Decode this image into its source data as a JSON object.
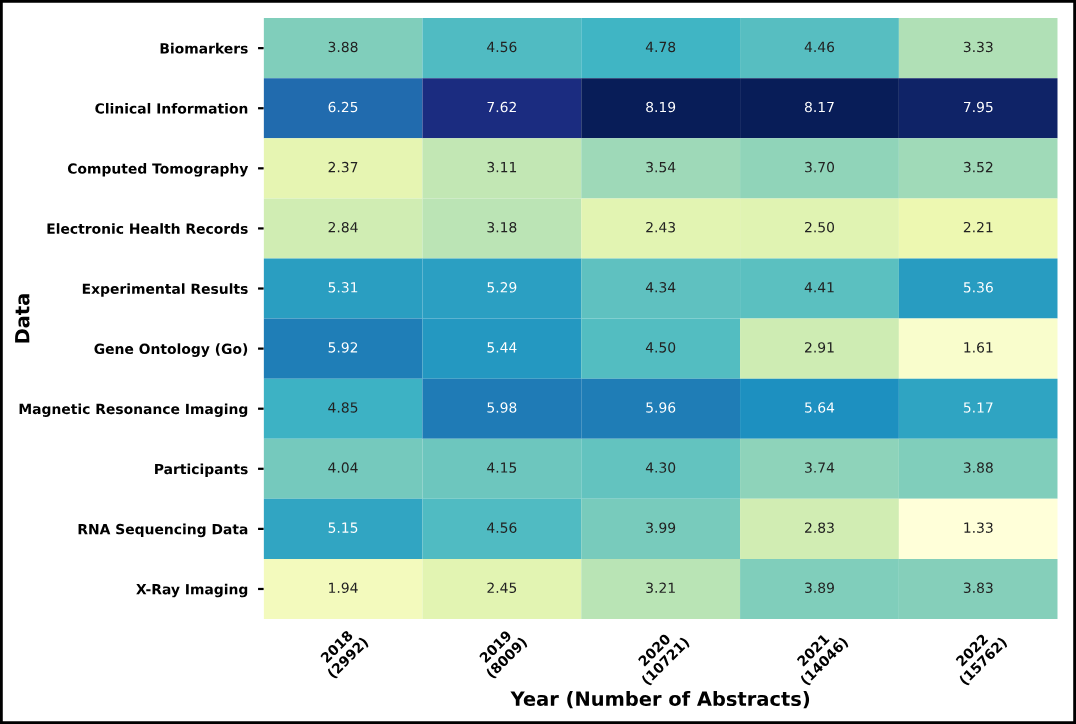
{
  "chart_data": {
    "type": "heatmap",
    "xlabel": "Year (Number of Abstracts)",
    "ylabel": "Data",
    "categories": [
      "2018\n(2992)",
      "2019\n(8009)",
      "2020\n(10721)",
      "2021\n(14046)",
      "2022\n(15762)"
    ],
    "y_categories": [
      "Biomarkers",
      "Clinical Information",
      "Computed Tomography",
      "Electronic Health Records",
      "Experimental Results",
      "Gene Ontology (Go)",
      "Magnetic Resonance Imaging",
      "Participants",
      "RNA Sequencing Data",
      "X-Ray Imaging"
    ],
    "cells": [
      [
        3.88,
        4.56,
        4.78,
        4.46,
        3.33
      ],
      [
        6.25,
        7.62,
        8.19,
        8.17,
        7.95
      ],
      [
        2.37,
        3.11,
        3.54,
        3.7,
        3.52
      ],
      [
        2.84,
        3.18,
        2.43,
        2.5,
        2.21
      ],
      [
        5.31,
        5.29,
        4.34,
        4.41,
        5.36
      ],
      [
        5.92,
        5.44,
        4.5,
        2.91,
        1.61
      ],
      [
        4.85,
        5.98,
        5.96,
        5.64,
        5.17
      ],
      [
        4.04,
        4.15,
        4.3,
        3.74,
        3.88
      ],
      [
        5.15,
        4.56,
        3.99,
        2.83,
        1.33
      ],
      [
        1.94,
        2.45,
        3.21,
        3.89,
        3.83
      ]
    ],
    "cell_labels": [
      [
        "3.88",
        "4.56",
        "4.78",
        "4.46",
        "3.33"
      ],
      [
        "6.25",
        "7.62",
        "8.19",
        "8.17",
        "7.95"
      ],
      [
        "2.37",
        "3.11",
        "3.54",
        "3.70",
        "3.52"
      ],
      [
        "2.84",
        "3.18",
        "2.43",
        "2.50",
        "2.21"
      ],
      [
        "5.31",
        "5.29",
        "4.34",
        "4.41",
        "5.36"
      ],
      [
        "5.92",
        "5.44",
        "4.50",
        "2.91",
        "1.61"
      ],
      [
        "4.85",
        "5.98",
        "5.96",
        "5.64",
        "5.17"
      ],
      [
        "4.04",
        "4.15",
        "4.30",
        "3.74",
        "3.88"
      ],
      [
        "5.15",
        "4.56",
        "3.99",
        "2.83",
        "1.33"
      ],
      [
        "1.94",
        "2.45",
        "3.21",
        "3.89",
        "3.83"
      ]
    ]
  }
}
